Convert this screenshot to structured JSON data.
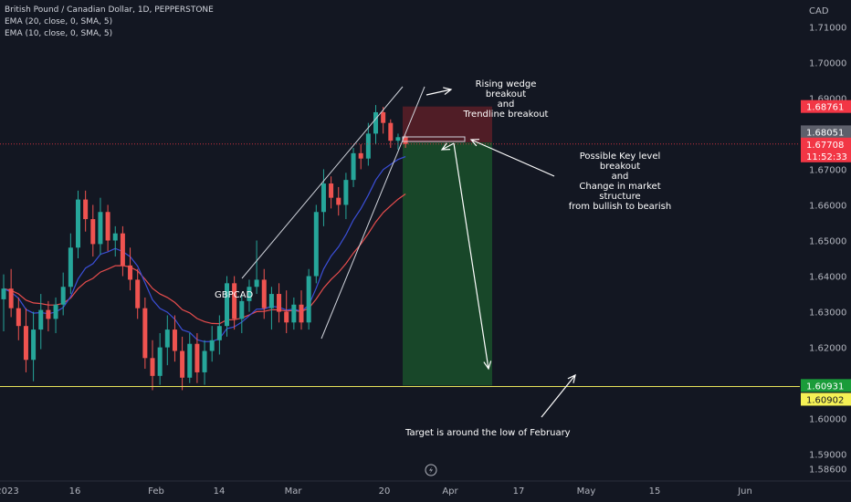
{
  "header": {
    "symbol_line": "British Pound / Canadian Dollar, 1D, PEPPERSTONE",
    "ema1": "EMA (20, close, 0, SMA, 5)",
    "ema2": "EMA (10, close, 0, SMA, 5)"
  },
  "annotations": {
    "gbpcad": "GBPCAD",
    "wedge_l1": "Rising wedge breakout",
    "wedge_l2": "and",
    "wedge_l3": "Trendline breakout",
    "key_l1": "Possible Key level breakout",
    "key_l2": "and",
    "key_l3": "Change in market structure",
    "key_l4": "from bullish to bearish",
    "target": "Target is around the low of February"
  },
  "colors": {
    "background": "#131722",
    "up": "#26a69a",
    "down": "#ef5350",
    "ema20": "#e84d4d",
    "ema10": "#3b4fd8",
    "target_line": "#e8e35b",
    "tp_zone": "#1a4d2a",
    "sl_zone": "#5c1f27"
  },
  "chart_data": {
    "type": "candlestick",
    "currency_label": "CAD",
    "y_axis": {
      "range": [
        1.5825,
        1.7175
      ],
      "ticks": [
        "1.71000",
        "1.70000",
        "1.69000",
        "1.68000",
        "1.67000",
        "1.66000",
        "1.65000",
        "1.64000",
        "1.63000",
        "1.62000",
        "1.61000",
        "1.60000",
        "1.59000",
        "1.58600"
      ],
      "tick_values": [
        1.71,
        1.7,
        1.69,
        1.68,
        1.67,
        1.66,
        1.65,
        1.64,
        1.63,
        1.62,
        1.61,
        1.6,
        1.59,
        1.586
      ]
    },
    "x_axis": {
      "labels": [
        "2023",
        "16",
        "Feb",
        "14",
        "Mar",
        "20",
        "Apr",
        "17",
        "May",
        "15",
        "Jun"
      ],
      "label_dates": [
        "2023-01-01",
        "2023-01-16",
        "2023-02-01",
        "2023-02-14",
        "2023-03-01",
        "2023-03-20",
        "2023-04-01",
        "2023-04-17",
        "2023-05-01",
        "2023-05-15",
        "2023-06-01"
      ]
    },
    "price_tags": [
      {
        "label": "1.68761",
        "value": 1.68761,
        "role": "stop loss",
        "color": "#f23645"
      },
      {
        "label": "1.68051",
        "value": 1.68051,
        "role": "price",
        "color": "#5d606b"
      },
      {
        "label": "1.67708",
        "value": 1.67708,
        "role": "last price",
        "color": "#f23645"
      },
      {
        "label": "11:52:33",
        "value": 1.67708,
        "role": "countdown",
        "color": "#f23645"
      },
      {
        "label": "1.60931",
        "value": 1.60931,
        "role": "target",
        "color": "#1a9c3a"
      },
      {
        "label": "1.60902",
        "value": 1.60902,
        "role": "horizontal line",
        "color": "#f5f155"
      }
    ],
    "trade": {
      "entry": 1.6775,
      "stop_loss": 1.68761,
      "target": 1.60931
    },
    "horizontal_line": 1.60902,
    "candles": [
      {
        "o": 1.6335,
        "h": 1.6405,
        "l": 1.6245,
        "c": 1.6365
      },
      {
        "o": 1.6365,
        "h": 1.642,
        "l": 1.6285,
        "c": 1.631
      },
      {
        "o": 1.631,
        "h": 1.634,
        "l": 1.622,
        "c": 1.626
      },
      {
        "o": 1.626,
        "h": 1.631,
        "l": 1.613,
        "c": 1.6165
      },
      {
        "o": 1.6165,
        "h": 1.63,
        "l": 1.6105,
        "c": 1.625
      },
      {
        "o": 1.625,
        "h": 1.635,
        "l": 1.6195,
        "c": 1.6305
      },
      {
        "o": 1.6305,
        "h": 1.633,
        "l": 1.6245,
        "c": 1.628
      },
      {
        "o": 1.628,
        "h": 1.634,
        "l": 1.624,
        "c": 1.632
      },
      {
        "o": 1.632,
        "h": 1.641,
        "l": 1.629,
        "c": 1.637
      },
      {
        "o": 1.637,
        "h": 1.652,
        "l": 1.635,
        "c": 1.648
      },
      {
        "o": 1.648,
        "h": 1.664,
        "l": 1.645,
        "c": 1.6615
      },
      {
        "o": 1.6615,
        "h": 1.664,
        "l": 1.6525,
        "c": 1.656
      },
      {
        "o": 1.656,
        "h": 1.66,
        "l": 1.6455,
        "c": 1.649
      },
      {
        "o": 1.649,
        "h": 1.662,
        "l": 1.646,
        "c": 1.658
      },
      {
        "o": 1.658,
        "h": 1.66,
        "l": 1.647,
        "c": 1.65
      },
      {
        "o": 1.65,
        "h": 1.654,
        "l": 1.6455,
        "c": 1.652
      },
      {
        "o": 1.652,
        "h": 1.654,
        "l": 1.64,
        "c": 1.643
      },
      {
        "o": 1.643,
        "h": 1.648,
        "l": 1.636,
        "c": 1.639
      },
      {
        "o": 1.639,
        "h": 1.642,
        "l": 1.628,
        "c": 1.631
      },
      {
        "o": 1.631,
        "h": 1.634,
        "l": 1.614,
        "c": 1.617
      },
      {
        "o": 1.617,
        "h": 1.622,
        "l": 1.608,
        "c": 1.612
      },
      {
        "o": 1.612,
        "h": 1.624,
        "l": 1.6095,
        "c": 1.62
      },
      {
        "o": 1.62,
        "h": 1.629,
        "l": 1.615,
        "c": 1.625
      },
      {
        "o": 1.625,
        "h": 1.629,
        "l": 1.616,
        "c": 1.619
      },
      {
        "o": 1.619,
        "h": 1.623,
        "l": 1.608,
        "c": 1.6115
      },
      {
        "o": 1.6115,
        "h": 1.624,
        "l": 1.61,
        "c": 1.621
      },
      {
        "o": 1.621,
        "h": 1.624,
        "l": 1.61,
        "c": 1.613
      },
      {
        "o": 1.613,
        "h": 1.622,
        "l": 1.6095,
        "c": 1.619
      },
      {
        "o": 1.619,
        "h": 1.626,
        "l": 1.616,
        "c": 1.622
      },
      {
        "o": 1.622,
        "h": 1.629,
        "l": 1.618,
        "c": 1.626
      },
      {
        "o": 1.626,
        "h": 1.64,
        "l": 1.623,
        "c": 1.638
      },
      {
        "o": 1.638,
        "h": 1.64,
        "l": 1.625,
        "c": 1.628
      },
      {
        "o": 1.628,
        "h": 1.635,
        "l": 1.624,
        "c": 1.633
      },
      {
        "o": 1.633,
        "h": 1.639,
        "l": 1.63,
        "c": 1.637
      },
      {
        "o": 1.637,
        "h": 1.65,
        "l": 1.635,
        "c": 1.639
      },
      {
        "o": 1.639,
        "h": 1.642,
        "l": 1.628,
        "c": 1.631
      },
      {
        "o": 1.631,
        "h": 1.637,
        "l": 1.625,
        "c": 1.635
      },
      {
        "o": 1.635,
        "h": 1.638,
        "l": 1.627,
        "c": 1.63
      },
      {
        "o": 1.63,
        "h": 1.636,
        "l": 1.624,
        "c": 1.627
      },
      {
        "o": 1.627,
        "h": 1.634,
        "l": 1.625,
        "c": 1.632
      },
      {
        "o": 1.632,
        "h": 1.636,
        "l": 1.625,
        "c": 1.627
      },
      {
        "o": 1.627,
        "h": 1.642,
        "l": 1.625,
        "c": 1.64
      },
      {
        "o": 1.64,
        "h": 1.66,
        "l": 1.638,
        "c": 1.658
      },
      {
        "o": 1.658,
        "h": 1.67,
        "l": 1.654,
        "c": 1.666
      },
      {
        "o": 1.666,
        "h": 1.668,
        "l": 1.659,
        "c": 1.662
      },
      {
        "o": 1.662,
        "h": 1.665,
        "l": 1.657,
        "c": 1.66
      },
      {
        "o": 1.66,
        "h": 1.669,
        "l": 1.656,
        "c": 1.667
      },
      {
        "o": 1.667,
        "h": 1.676,
        "l": 1.665,
        "c": 1.6745
      },
      {
        "o": 1.6745,
        "h": 1.677,
        "l": 1.67,
        "c": 1.673
      },
      {
        "o": 1.673,
        "h": 1.683,
        "l": 1.671,
        "c": 1.68
      },
      {
        "o": 1.68,
        "h": 1.688,
        "l": 1.677,
        "c": 1.686
      },
      {
        "o": 1.686,
        "h": 1.6875,
        "l": 1.68,
        "c": 1.683
      },
      {
        "o": 1.683,
        "h": 1.684,
        "l": 1.676,
        "c": 1.678
      },
      {
        "o": 1.678,
        "h": 1.68,
        "l": 1.6755,
        "c": 1.679
      },
      {
        "o": 1.679,
        "h": 1.6795,
        "l": 1.676,
        "c": 1.6771
      }
    ]
  }
}
